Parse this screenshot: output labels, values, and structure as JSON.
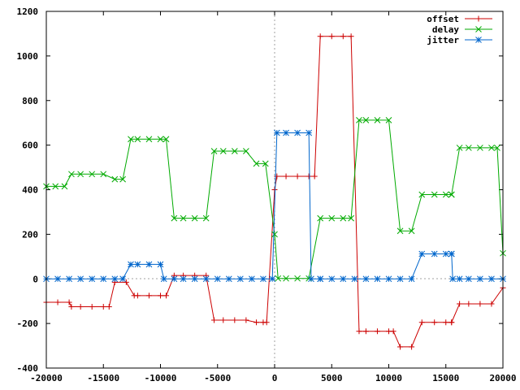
{
  "chart_data": {
    "type": "line",
    "xlim": [
      -20000,
      20000
    ],
    "ylim": [
      -400,
      1200
    ],
    "xticks": [
      "-20000",
      "-15000",
      "-10000",
      "-5000",
      "0",
      "5000",
      "10000",
      "15000",
      "20000"
    ],
    "yticks": [
      "-400",
      "-200",
      "0",
      "200",
      "400",
      "600",
      "800",
      "1000",
      "1200"
    ],
    "grid": false,
    "zero_axes": "dotted",
    "legend_position": "top-right",
    "series": [
      {
        "name": "offset",
        "color": "#cc0000",
        "marker": "plus",
        "points": [
          [
            -20000,
            -105
          ],
          [
            -19000,
            -105
          ],
          [
            -18000,
            -105
          ],
          [
            -17800,
            -125
          ],
          [
            -17000,
            -125
          ],
          [
            -16000,
            -125
          ],
          [
            -15000,
            -125
          ],
          [
            -14500,
            -125
          ],
          [
            -14000,
            -15
          ],
          [
            -13000,
            -15
          ],
          [
            -12300,
            -75
          ],
          [
            -12000,
            -75
          ],
          [
            -11000,
            -75
          ],
          [
            -10000,
            -75
          ],
          [
            -9500,
            -75
          ],
          [
            -8800,
            15
          ],
          [
            -8000,
            15
          ],
          [
            -7000,
            15
          ],
          [
            -6000,
            15
          ],
          [
            -5300,
            -185
          ],
          [
            -4500,
            -185
          ],
          [
            -3500,
            -185
          ],
          [
            -2500,
            -185
          ],
          [
            -1600,
            -195
          ],
          [
            -1000,
            -195
          ],
          [
            -700,
            -195
          ],
          [
            0,
            400
          ],
          [
            200,
            460
          ],
          [
            1000,
            460
          ],
          [
            2000,
            460
          ],
          [
            3000,
            460
          ],
          [
            3500,
            460
          ],
          [
            4000,
            1088
          ],
          [
            5000,
            1088
          ],
          [
            6000,
            1088
          ],
          [
            6700,
            1088
          ],
          [
            7400,
            -235
          ],
          [
            8000,
            -235
          ],
          [
            9000,
            -235
          ],
          [
            10000,
            -235
          ],
          [
            10400,
            -235
          ],
          [
            11000,
            -305
          ],
          [
            12000,
            -305
          ],
          [
            12900,
            -195
          ],
          [
            14000,
            -195
          ],
          [
            15000,
            -195
          ],
          [
            15500,
            -195
          ],
          [
            15500,
            -195
          ],
          [
            16200,
            -112
          ],
          [
            17000,
            -112
          ],
          [
            18000,
            -112
          ],
          [
            19000,
            -112
          ],
          [
            20000,
            -40
          ]
        ]
      },
      {
        "name": "delay",
        "color": "#00aa00",
        "marker": "cross",
        "points": [
          [
            -20000,
            415
          ],
          [
            -19200,
            415
          ],
          [
            -18400,
            415
          ],
          [
            -17800,
            470
          ],
          [
            -17000,
            470
          ],
          [
            -16000,
            470
          ],
          [
            -15000,
            470
          ],
          [
            -14000,
            447
          ],
          [
            -13300,
            447
          ],
          [
            -12600,
            627
          ],
          [
            -12000,
            627
          ],
          [
            -11000,
            627
          ],
          [
            -10000,
            627
          ],
          [
            -9500,
            627
          ],
          [
            -8800,
            272
          ],
          [
            -8000,
            272
          ],
          [
            -7000,
            272
          ],
          [
            -6000,
            272
          ],
          [
            -5300,
            573
          ],
          [
            -4500,
            573
          ],
          [
            -3500,
            573
          ],
          [
            -2500,
            573
          ],
          [
            -1600,
            517
          ],
          [
            -800,
            517
          ],
          [
            0,
            200
          ],
          [
            300,
            2
          ],
          [
            1000,
            2
          ],
          [
            2000,
            2
          ],
          [
            3000,
            2
          ],
          [
            4000,
            272
          ],
          [
            5000,
            272
          ],
          [
            6000,
            272
          ],
          [
            6700,
            272
          ],
          [
            7400,
            712
          ],
          [
            8000,
            712
          ],
          [
            9000,
            712
          ],
          [
            10000,
            712
          ],
          [
            11000,
            215
          ],
          [
            12000,
            215
          ],
          [
            12900,
            378
          ],
          [
            14000,
            378
          ],
          [
            15000,
            378
          ],
          [
            15500,
            378
          ],
          [
            15500,
            378
          ],
          [
            16200,
            588
          ],
          [
            17000,
            588
          ],
          [
            18000,
            588
          ],
          [
            19000,
            588
          ],
          [
            19500,
            588
          ],
          [
            20000,
            115
          ]
        ]
      },
      {
        "name": "jitter",
        "color": "#0066cc",
        "marker": "star",
        "points": [
          [
            -20000,
            0
          ],
          [
            -19000,
            0
          ],
          [
            -18000,
            0
          ],
          [
            -17000,
            0
          ],
          [
            -16000,
            0
          ],
          [
            -15000,
            0
          ],
          [
            -14000,
            0
          ],
          [
            -13300,
            0
          ],
          [
            -12600,
            65
          ],
          [
            -12000,
            65
          ],
          [
            -11000,
            65
          ],
          [
            -10000,
            65
          ],
          [
            -9700,
            0
          ],
          [
            -8800,
            0
          ],
          [
            -8000,
            0
          ],
          [
            -7000,
            0
          ],
          [
            -6000,
            0
          ],
          [
            -5000,
            0
          ],
          [
            -4000,
            0
          ],
          [
            -3000,
            0
          ],
          [
            -2000,
            0
          ],
          [
            -1000,
            0
          ],
          [
            -200,
            0
          ],
          [
            200,
            655
          ],
          [
            1000,
            655
          ],
          [
            2000,
            655
          ],
          [
            3000,
            655
          ],
          [
            3200,
            0
          ],
          [
            4000,
            0
          ],
          [
            4000,
            0
          ],
          [
            5000,
            0
          ],
          [
            6000,
            0
          ],
          [
            7000,
            0
          ],
          [
            8000,
            0
          ],
          [
            9000,
            0
          ],
          [
            10000,
            0
          ],
          [
            11000,
            0
          ],
          [
            12000,
            0
          ],
          [
            12900,
            112
          ],
          [
            14000,
            112
          ],
          [
            15000,
            112
          ],
          [
            15500,
            112
          ],
          [
            15500,
            112
          ],
          [
            15600,
            0
          ],
          [
            16200,
            0
          ],
          [
            17000,
            0
          ],
          [
            18000,
            0
          ],
          [
            19000,
            0
          ],
          [
            20000,
            0
          ]
        ]
      }
    ]
  }
}
